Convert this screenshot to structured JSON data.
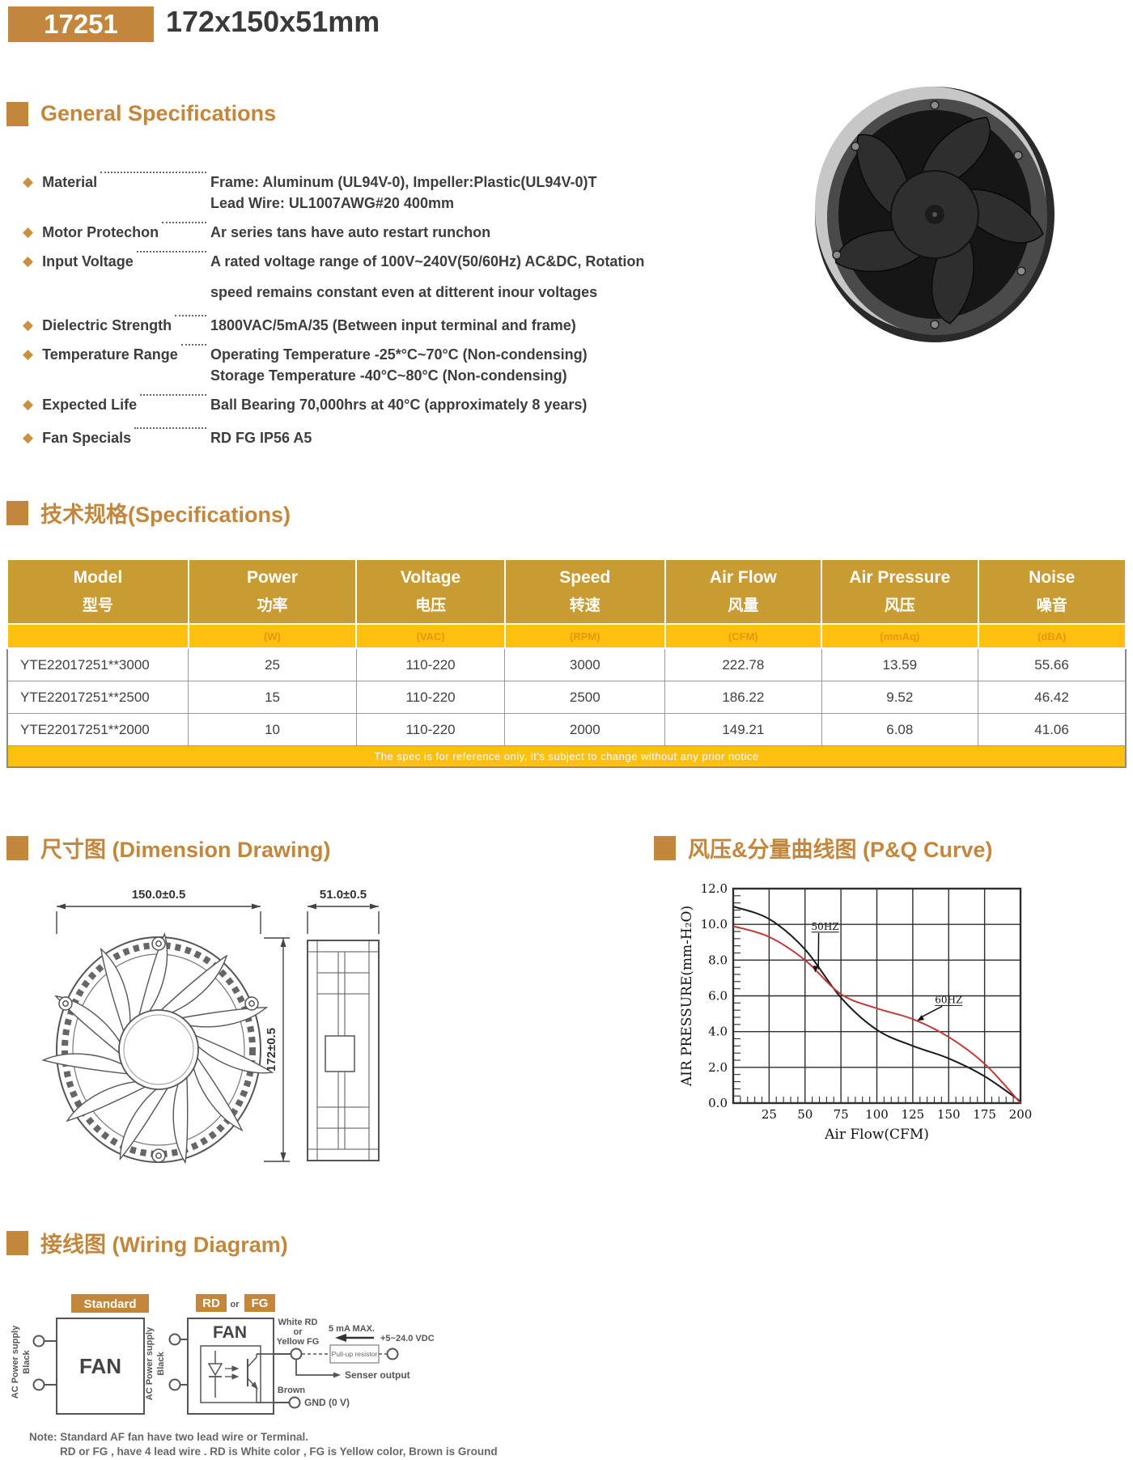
{
  "header": {
    "badge": "17251",
    "title": "172x150x51mm"
  },
  "sections": {
    "general": "General Specifications",
    "specs_table": "技术规格(Specifications)",
    "dimension": "尺寸图 (Dimension Drawing)",
    "pq": "风压&分量曲线图 (P&Q Curve)",
    "wiring": "接线图 (Wiring Diagram)"
  },
  "general_specs": {
    "rows": [
      {
        "label": "Material",
        "lines": [
          "Frame: Aluminum (UL94V-0), Impeller:Plastic(UL94V-0)T",
          "Lead Wire: UL1007AWG#20 400mm"
        ]
      },
      {
        "label": "Motor Protechon",
        "lines": [
          "Ar series tans have auto restart runchon"
        ]
      },
      {
        "label": "Input Voltage",
        "lines": [
          "A rated voltage range of 100V~240V(50/60Hz) AC&DC, Rotation",
          "speed remains constant even at ditterent inour voltages"
        ]
      },
      {
        "label": "Dielectric Strength",
        "lines": [
          "1800VAC/5mA/35 (Between input terminal and frame)"
        ]
      },
      {
        "label": "Temperature Range",
        "lines": [
          "Operating Temperature -25*°C~70°C (Non-condensing)",
          "Storage Temperature -40°C~80°C (Non-condensing)"
        ]
      },
      {
        "label": "Expected Life",
        "lines": [
          "Ball Bearing 70,000hrs at 40°C (approximately 8 years)"
        ]
      },
      {
        "label": "Fan Specials",
        "lines": [
          "RD FG IP56 A5"
        ]
      }
    ]
  },
  "table": {
    "headers": [
      {
        "en": "Model",
        "zh": "型号"
      },
      {
        "en": "Power",
        "zh": "功率"
      },
      {
        "en": "Voltage",
        "zh": "电压"
      },
      {
        "en": "Speed",
        "zh": "转速"
      },
      {
        "en": "Air Flow",
        "zh": "风量"
      },
      {
        "en": "Air Pressure",
        "zh": "风压"
      },
      {
        "en": "Noise",
        "zh": "噪音"
      }
    ],
    "units": [
      "",
      "(W)",
      "(VAC)",
      "(RPM)",
      "(CFM)",
      "(mmAq)",
      "(dBA)"
    ],
    "rows": [
      [
        "YTE22017251**3000",
        "25",
        "110-220",
        "3000",
        "222.78",
        "13.59",
        "55.66"
      ],
      [
        "YTE22017251**2500",
        "15",
        "110-220",
        "2500",
        "186.22",
        "9.52",
        "46.42"
      ],
      [
        "YTE22017251**2000",
        "10",
        "110-220",
        "2000",
        "149.21",
        "6.08",
        "41.06"
      ]
    ],
    "footnote": "The spec is for reference only, it's subject to change without any prior notice"
  },
  "dimension": {
    "width": "150.0±0.5",
    "height": "172±0.5",
    "depth": "51.0±0.5"
  },
  "chart_data": {
    "type": "line",
    "xlabel": "Air Flow(CFM)",
    "ylabel": "AIR PRESSURE(mm-H₂O)",
    "xlim": [
      0,
      200
    ],
    "ylim": [
      0,
      12
    ],
    "xticks": [
      25,
      50,
      75,
      100,
      125,
      150,
      175,
      200
    ],
    "yticks": [
      0,
      2,
      4,
      6,
      8,
      10,
      12
    ],
    "grid": true,
    "legend_position": "annotated-on-curve",
    "series": [
      {
        "name": "50HZ",
        "color": "#1c1c1c",
        "x": [
          0,
          25,
          50,
          75,
          100,
          125,
          150,
          175,
          200
        ],
        "y": [
          11.0,
          10.3,
          8.6,
          5.9,
          4.1,
          3.2,
          2.5,
          1.5,
          0.1
        ]
      },
      {
        "name": "60HZ",
        "color": "#C03A3A",
        "x": [
          0,
          25,
          50,
          75,
          100,
          125,
          150,
          175,
          200
        ],
        "y": [
          9.9,
          9.3,
          8.0,
          6.1,
          5.3,
          4.7,
          3.7,
          2.2,
          0.0
        ]
      }
    ],
    "annotations": [
      {
        "text": "50HZ",
        "x": 64,
        "y": 9.7,
        "tx": 57,
        "ty": 7.3
      },
      {
        "text": "60HZ",
        "x": 150,
        "y": 5.6,
        "tx": 128,
        "ty": 4.6
      }
    ]
  },
  "wiring": {
    "standard_badge": "Standard",
    "rd_badge": "RD",
    "or_label": "or",
    "fg_badge": "FG",
    "fan_label": "FAN",
    "ac_power": "AC Power supply",
    "black": "Black",
    "white_rd": "White  RD",
    "or_small": "or",
    "yellow_fg": "Yellow FG",
    "ma_max": "5 mA MAX.",
    "vdc": "+5~24.0 VDC",
    "pullup": "Pull-up resistor",
    "senser": "Senser output",
    "brown": "Brown",
    "gnd": "GND (0 V)",
    "note1": "Note: Standard AF fan have two lead wire or Terminal.",
    "note2": "RD or FG , have 4 lead wire . RD is White color , FG is Yellow color, Brown is Ground"
  },
  "colors": {
    "accent": "#C2873C",
    "table_header": "#C99B33",
    "amber": "#FFC010",
    "curve_50hz": "#1c1c1c",
    "curve_60hz": "#C03A3A"
  }
}
